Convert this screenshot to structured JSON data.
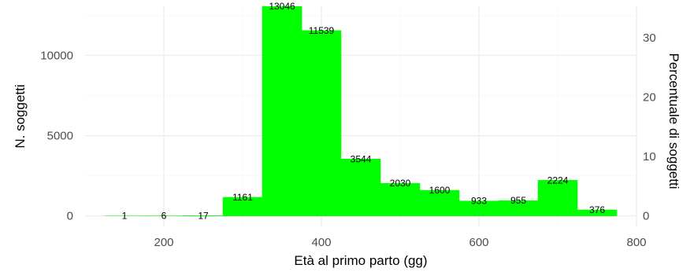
{
  "chart_data": {
    "type": "bar",
    "xlabel": "Età al primo parto (gg)",
    "ylabel": "N. soggetti",
    "y2label": "Percentuale di soggetti",
    "bin_width": 50,
    "bins": [
      {
        "x0": 125,
        "x1": 175,
        "value": 1,
        "label": "1"
      },
      {
        "x0": 175,
        "x1": 225,
        "value": 6,
        "label": "6"
      },
      {
        "x0": 225,
        "x1": 275,
        "value": 17,
        "label": "17"
      },
      {
        "x0": 275,
        "x1": 325,
        "value": 1161,
        "label": "1161"
      },
      {
        "x0": 325,
        "x1": 375,
        "value": 13046,
        "label": "13046"
      },
      {
        "x0": 375,
        "x1": 425,
        "value": 11539,
        "label": "11539"
      },
      {
        "x0": 425,
        "x1": 475,
        "value": 3544,
        "label": "3544"
      },
      {
        "x0": 475,
        "x1": 525,
        "value": 2030,
        "label": "2030"
      },
      {
        "x0": 525,
        "x1": 575,
        "value": 1600,
        "label": "1600"
      },
      {
        "x0": 575,
        "x1": 625,
        "value": 933,
        "label": "933"
      },
      {
        "x0": 625,
        "x1": 675,
        "value": 955,
        "label": "955"
      },
      {
        "x0": 675,
        "x1": 725,
        "value": 2224,
        "label": "2224"
      },
      {
        "x0": 725,
        "x1": 775,
        "value": 376,
        "label": "376"
      }
    ],
    "xlim": [
      100,
      800
    ],
    "ylim": [
      -650,
      13050
    ],
    "x_ticks": [
      200,
      400,
      600,
      800
    ],
    "x_tick_labels": [
      "200",
      "400",
      "600",
      "800"
    ],
    "y_ticks": [
      0,
      5000,
      10000
    ],
    "y_tick_labels": [
      "0",
      "5000",
      "10000"
    ],
    "y2_ticks": [
      0,
      10,
      20,
      30
    ],
    "y2_tick_labels": [
      "0",
      "10",
      "20",
      "30"
    ],
    "y2_per_y1": 0.002706,
    "bar_color": "#00ff00",
    "grid": true
  }
}
